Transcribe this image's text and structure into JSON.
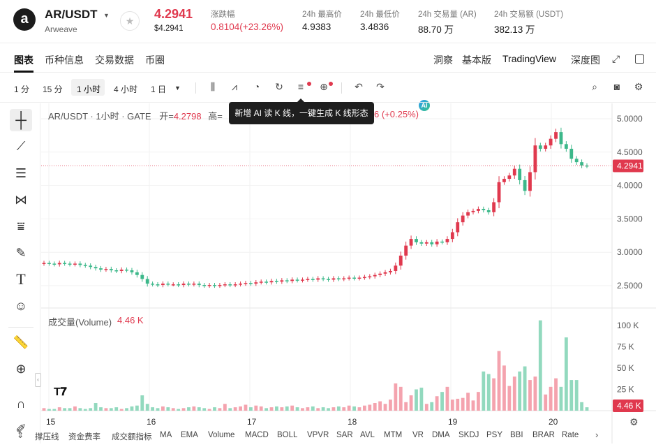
{
  "header": {
    "logo_glyph": "a",
    "pair": "AR/USDT",
    "pair_sub": "Arweave",
    "price": "4.2941",
    "price_usd": "$4.2941",
    "stats": [
      {
        "label": "涨跌幅",
        "value": "0.8104(+23.26%)"
      },
      {
        "label": "24h 最高价",
        "value": "4.9383"
      },
      {
        "label": "24h 最低价",
        "value": "3.4836"
      },
      {
        "label": "24h 交易量 (AR)",
        "value": "88.70 万"
      },
      {
        "label": "24h 交易额 (USDT)",
        "value": "382.13 万"
      }
    ]
  },
  "tabs": {
    "left": [
      "图表",
      "币种信息",
      "交易数据",
      "币圈"
    ],
    "right": {
      "insight": "洞察",
      "basic": "基本版",
      "tv": "TradingView",
      "depth": "深度图"
    }
  },
  "toolbar": {
    "intervals": [
      "1 分",
      "15 分",
      "1 小时",
      "4 小时",
      "1 日"
    ],
    "active_interval": "1 小时"
  },
  "tooltip": "新增 AI 读 K 线，一键生成 K 线形态",
  "legend": {
    "title": "AR/USDT · 1小时 · GATE",
    "open_label": "开=",
    "open_value": "4.2798",
    "high_label": "高=",
    "change": "6 (+0.25%)"
  },
  "volume_legend": {
    "label": "成交量(Volume)",
    "value": "4.46 K"
  },
  "price_axis": [
    "5.0000",
    "4.5000",
    "4.0000",
    "3.5000",
    "3.0000",
    "2.5000"
  ],
  "price_tag": "4.2941",
  "volume_axis": [
    "100 K",
    "75 K",
    "50 K",
    "25 K"
  ],
  "volume_tag": "4.46 K",
  "time_axis": [
    "15",
    "16",
    "17",
    "18",
    "19",
    "20"
  ],
  "indicators": [
    "撑压线",
    "资金费率",
    "成交额指标",
    "MA",
    "EMA",
    "Volume",
    "MACD",
    "BOLL",
    "VPVR",
    "SAR",
    "AVL",
    "MTM",
    "VR",
    "DMA",
    "SKDJ",
    "PSY",
    "BBI",
    "BRAR",
    "Rate"
  ],
  "colors": {
    "up": "#e0394e",
    "down": "#3cb88a",
    "vol_up": "#f4a3ae",
    "vol_down": "#92d9be"
  },
  "chart_data": {
    "type": "candlestick",
    "interval": "1 小时",
    "candles_close": [
      2.84,
      2.83,
      2.82,
      2.84,
      2.83,
      2.82,
      2.83,
      2.81,
      2.8,
      2.78,
      2.76,
      2.74,
      2.75,
      2.73,
      2.72,
      2.74,
      2.73,
      2.7,
      2.66,
      2.6,
      2.53,
      2.52,
      2.51,
      2.53,
      2.52,
      2.52,
      2.51,
      2.53,
      2.52,
      2.53,
      2.51,
      2.5,
      2.51,
      2.5,
      2.51,
      2.52,
      2.51,
      2.52,
      2.53,
      2.54,
      2.53,
      2.55,
      2.56,
      2.55,
      2.57,
      2.56,
      2.58,
      2.57,
      2.59,
      2.58,
      2.59,
      2.6,
      2.59,
      2.61,
      2.6,
      2.59,
      2.61,
      2.6,
      2.61,
      2.62,
      2.61,
      2.62,
      2.63,
      2.64,
      2.66,
      2.68,
      2.7,
      2.72,
      2.8,
      2.95,
      3.1,
      3.2,
      3.15,
      3.13,
      3.15,
      3.12,
      3.16,
      3.15,
      3.2,
      3.3,
      3.45,
      3.55,
      3.6,
      3.62,
      3.65,
      3.63,
      3.6,
      3.75,
      4.05,
      4.1,
      4.15,
      4.25,
      4.08,
      3.92,
      4.2,
      4.6,
      4.55,
      4.6,
      4.7,
      4.8,
      4.62,
      4.55,
      4.4,
      4.35,
      4.3,
      4.29
    ],
    "volume_k": [
      3,
      2,
      2,
      4,
      3,
      3,
      5,
      3,
      2,
      3,
      9,
      4,
      3,
      3,
      4,
      2,
      3,
      5,
      6,
      18,
      8,
      4,
      3,
      5,
      4,
      3,
      2,
      3,
      4,
      5,
      4,
      3,
      2,
      4,
      3,
      8,
      3,
      4,
      5,
      7,
      4,
      6,
      5,
      3,
      4,
      5,
      4,
      5,
      6,
      4,
      3,
      4,
      5,
      3,
      4,
      3,
      4,
      5,
      4,
      6,
      5,
      4,
      6,
      7,
      9,
      11,
      8,
      13,
      32,
      28,
      10,
      18,
      25,
      27,
      8,
      10,
      17,
      22,
      28,
      13,
      14,
      15,
      21,
      12,
      22,
      46,
      43,
      38,
      70,
      53,
      29,
      40,
      46,
      52,
      36,
      40,
      106,
      19,
      28,
      38,
      28,
      86,
      36,
      36,
      10,
      4
    ]
  }
}
